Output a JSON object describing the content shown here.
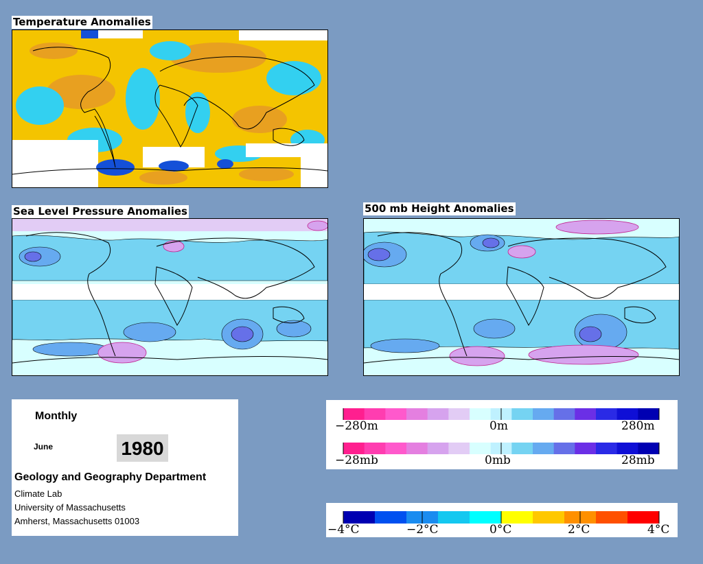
{
  "maps": {
    "temperature": {
      "title": "Temperature Anomalies"
    },
    "slp": {
      "title": "Sea Level Pressure Anomalies"
    },
    "height500": {
      "title": "500 mb Height Anomalies"
    }
  },
  "info": {
    "period": "Monthly",
    "month": "June",
    "year": "1980",
    "department": "Geology and Geography Department",
    "lines": [
      "Climate Lab",
      "University of Massachusetts",
      "Amherst, Massachusetts 01003"
    ]
  },
  "legends": {
    "height": {
      "labels": [
        "−280m",
        "0m",
        "280m"
      ]
    },
    "pressure": {
      "labels": [
        "−28mb",
        "0mb",
        "28mb"
      ]
    },
    "temperature": {
      "labels": [
        "−4°C",
        "−2°C",
        "0°C",
        "2°C",
        "4°C"
      ]
    }
  },
  "colors": {
    "background": "#7b9bc2",
    "pressure_scale": [
      "#ff1f8f",
      "#ff3db0",
      "#ff59cc",
      "#e47fe0",
      "#d6a3ee",
      "#e2ccf5",
      "#d8ffff",
      "#bff1ff",
      "#75d3f2",
      "#66aaf0",
      "#6670e8",
      "#6b2fe6",
      "#2a2ae6",
      "#0f0fd6",
      "#0000b2"
    ],
    "temperature_scale": [
      "#0000b2",
      "#0050f0",
      "#1a8cf0",
      "#14c8f0",
      "#00ffff",
      "#ffff00",
      "#ffc800",
      "#ff9000",
      "#ff5000",
      "#ff0000"
    ]
  }
}
